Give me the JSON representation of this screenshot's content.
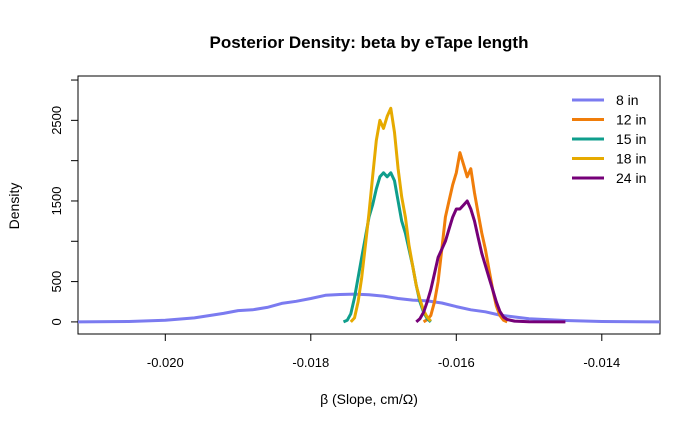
{
  "chart_data": {
    "type": "line",
    "title": "Posterior Density: beta by eTape length",
    "xlabel": "β (Slope, cm/Ω)",
    "ylabel": "Density",
    "xlim": [
      -0.0212,
      -0.0132
    ],
    "ylim": [
      -150,
      3050
    ],
    "x_ticks": [
      {
        "value": -0.02,
        "label": "-0.020"
      },
      {
        "value": -0.018,
        "label": "-0.018"
      },
      {
        "value": -0.016,
        "label": "-0.016"
      },
      {
        "value": -0.014,
        "label": "-0.014"
      }
    ],
    "y_ticks": [
      {
        "value": 0,
        "label": "0"
      },
      {
        "value": 500,
        "label": "500"
      },
      {
        "value": 1500,
        "label": "1500"
      },
      {
        "value": 2500,
        "label": "2500"
      }
    ],
    "y_ticks_unlabeled": [
      1000,
      2000,
      3000
    ],
    "legend_position": "top-right",
    "series": [
      {
        "name": "8 in",
        "color": "#7B7BF0",
        "points": [
          [
            -0.0212,
            0
          ],
          [
            -0.0205,
            5
          ],
          [
            -0.02,
            20
          ],
          [
            -0.0196,
            50
          ],
          [
            -0.0192,
            105
          ],
          [
            -0.019,
            140
          ],
          [
            -0.0188,
            150
          ],
          [
            -0.0186,
            180
          ],
          [
            -0.0184,
            230
          ],
          [
            -0.0182,
            255
          ],
          [
            -0.018,
            290
          ],
          [
            -0.0178,
            330
          ],
          [
            -0.0176,
            340
          ],
          [
            -0.0174,
            345
          ],
          [
            -0.0172,
            338
          ],
          [
            -0.017,
            320
          ],
          [
            -0.0168,
            290
          ],
          [
            -0.0166,
            270
          ],
          [
            -0.0164,
            260
          ],
          [
            -0.0162,
            235
          ],
          [
            -0.016,
            190
          ],
          [
            -0.0158,
            150
          ],
          [
            -0.0156,
            125
          ],
          [
            -0.0154,
            85
          ],
          [
            -0.015,
            40
          ],
          [
            -0.0145,
            18
          ],
          [
            -0.014,
            5
          ],
          [
            -0.0132,
            0
          ]
        ]
      },
      {
        "name": "12 in",
        "color": "#F07D0A",
        "points": [
          [
            -0.01645,
            0
          ],
          [
            -0.0164,
            30
          ],
          [
            -0.01635,
            80
          ],
          [
            -0.0163,
            250
          ],
          [
            -0.01625,
            500
          ],
          [
            -0.0162,
            900
          ],
          [
            -0.01615,
            1300
          ],
          [
            -0.0161,
            1500
          ],
          [
            -0.01605,
            1700
          ],
          [
            -0.016,
            1850
          ],
          [
            -0.01595,
            2100
          ],
          [
            -0.0159,
            1950
          ],
          [
            -0.01585,
            1800
          ],
          [
            -0.0158,
            1900
          ],
          [
            -0.01575,
            1600
          ],
          [
            -0.0157,
            1350
          ],
          [
            -0.01565,
            1100
          ],
          [
            -0.0156,
            900
          ],
          [
            -0.01555,
            650
          ],
          [
            -0.0155,
            400
          ],
          [
            -0.01545,
            200
          ],
          [
            -0.0154,
            80
          ],
          [
            -0.01535,
            20
          ],
          [
            -0.0153,
            0
          ]
        ]
      },
      {
        "name": "15 in",
        "color": "#0F9E8C",
        "points": [
          [
            -0.01755,
            0
          ],
          [
            -0.0175,
            20
          ],
          [
            -0.01745,
            100
          ],
          [
            -0.0174,
            300
          ],
          [
            -0.01735,
            550
          ],
          [
            -0.0173,
            800
          ],
          [
            -0.01725,
            1050
          ],
          [
            -0.0172,
            1300
          ],
          [
            -0.01715,
            1450
          ],
          [
            -0.0171,
            1650
          ],
          [
            -0.01705,
            1800
          ],
          [
            -0.017,
            1850
          ],
          [
            -0.01695,
            1800
          ],
          [
            -0.0169,
            1850
          ],
          [
            -0.01685,
            1750
          ],
          [
            -0.0168,
            1500
          ],
          [
            -0.01675,
            1250
          ],
          [
            -0.0167,
            1100
          ],
          [
            -0.01665,
            900
          ],
          [
            -0.0166,
            700
          ],
          [
            -0.01655,
            450
          ],
          [
            -0.0165,
            250
          ],
          [
            -0.01645,
            120
          ],
          [
            -0.0164,
            40
          ],
          [
            -0.01635,
            0
          ]
        ]
      },
      {
        "name": "18 in",
        "color": "#E6AA00",
        "points": [
          [
            -0.01745,
            0
          ],
          [
            -0.0174,
            50
          ],
          [
            -0.01735,
            250
          ],
          [
            -0.0173,
            550
          ],
          [
            -0.01725,
            950
          ],
          [
            -0.0172,
            1350
          ],
          [
            -0.01715,
            1800
          ],
          [
            -0.0171,
            2250
          ],
          [
            -0.01705,
            2500
          ],
          [
            -0.017,
            2400
          ],
          [
            -0.01695,
            2550
          ],
          [
            -0.0169,
            2650
          ],
          [
            -0.01685,
            2350
          ],
          [
            -0.0168,
            1900
          ],
          [
            -0.01675,
            1550
          ],
          [
            -0.0167,
            1300
          ],
          [
            -0.01665,
            950
          ],
          [
            -0.0166,
            700
          ],
          [
            -0.01655,
            450
          ],
          [
            -0.0165,
            280
          ],
          [
            -0.01645,
            140
          ],
          [
            -0.0164,
            60
          ],
          [
            -0.01635,
            10
          ]
        ]
      },
      {
        "name": "24 in",
        "color": "#760078",
        "points": [
          [
            -0.01655,
            0
          ],
          [
            -0.0165,
            40
          ],
          [
            -0.01645,
            120
          ],
          [
            -0.0164,
            250
          ],
          [
            -0.01635,
            400
          ],
          [
            -0.0163,
            600
          ],
          [
            -0.01625,
            800
          ],
          [
            -0.0162,
            900
          ],
          [
            -0.01615,
            1000
          ],
          [
            -0.0161,
            1150
          ],
          [
            -0.01605,
            1300
          ],
          [
            -0.016,
            1400
          ],
          [
            -0.01595,
            1400
          ],
          [
            -0.0159,
            1450
          ],
          [
            -0.01585,
            1500
          ],
          [
            -0.0158,
            1400
          ],
          [
            -0.01575,
            1250
          ],
          [
            -0.0157,
            1050
          ],
          [
            -0.01565,
            850
          ],
          [
            -0.0156,
            700
          ],
          [
            -0.01555,
            550
          ],
          [
            -0.0155,
            400
          ],
          [
            -0.01545,
            250
          ],
          [
            -0.0154,
            130
          ],
          [
            -0.01535,
            60
          ],
          [
            -0.0153,
            30
          ],
          [
            -0.0152,
            10
          ],
          [
            -0.015,
            3
          ],
          [
            -0.0145,
            0
          ]
        ]
      }
    ]
  }
}
